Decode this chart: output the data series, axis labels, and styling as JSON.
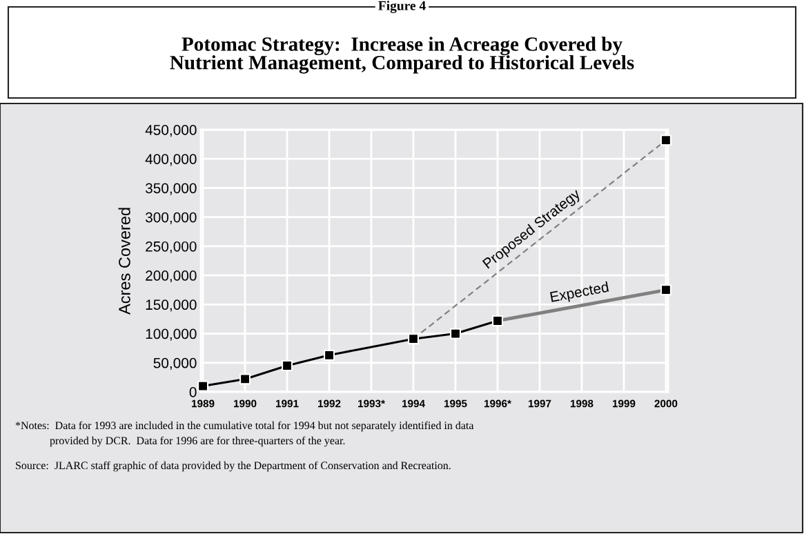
{
  "chart_data": {
    "type": "line",
    "title": "Potomac Strategy:  Increase in Acreage Covered by\nNutrient Management, Compared to Historical Levels",
    "ylabel": "Acres Covered",
    "categories": [
      "1989",
      "1990",
      "1991",
      "1992",
      "1993*",
      "1994",
      "1995",
      "1996*",
      "1997",
      "1998",
      "1999",
      "2000"
    ],
    "series": [
      {
        "color": "#000000",
        "line_style": "solid",
        "marker": "square",
        "values": [
          10000,
          22000,
          45000,
          63000,
          null,
          91000,
          100000,
          122000,
          null,
          null,
          null,
          null
        ]
      },
      {
        "name": "Expected",
        "color": "#808080",
        "line_style": "solid",
        "marker": "square",
        "values": [
          null,
          null,
          null,
          null,
          null,
          null,
          null,
          122000,
          null,
          null,
          null,
          175000
        ]
      },
      {
        "name": "Proposed Strategy",
        "color": "#808080",
        "line_style": "dashed",
        "marker": "square",
        "values": [
          null,
          null,
          null,
          null,
          null,
          91000,
          null,
          null,
          null,
          null,
          null,
          432000
        ]
      }
    ],
    "ylim": [
      0,
      450000
    ],
    "yticks": [
      0,
      {
        "value": 50000,
        "label": "50,000"
      },
      {
        "value": 100000,
        "label": "100,000"
      },
      {
        "value": 150000,
        "label": "150,000"
      },
      {
        "value": 200000,
        "label": "200,000"
      },
      {
        "value": 250000,
        "label": "250,000"
      },
      {
        "value": 300000,
        "label": "300,000"
      },
      {
        "value": 350000,
        "label": "350,000"
      },
      {
        "value": 400000,
        "label": "400,000"
      },
      {
        "value": 450000,
        "label": "450,000"
      }
    ],
    "grid": true,
    "annotations": [
      "Figure 4",
      "*Notes:  Data for 1993 are included in the cumulative total for 1994 but not separately identified in data\nprovided by DCR.  Data for 1996 are for three-quarters of the year.",
      "Source:  JLARC staff graphic of data provided by the Department of Conservation and Recreation."
    ]
  }
}
